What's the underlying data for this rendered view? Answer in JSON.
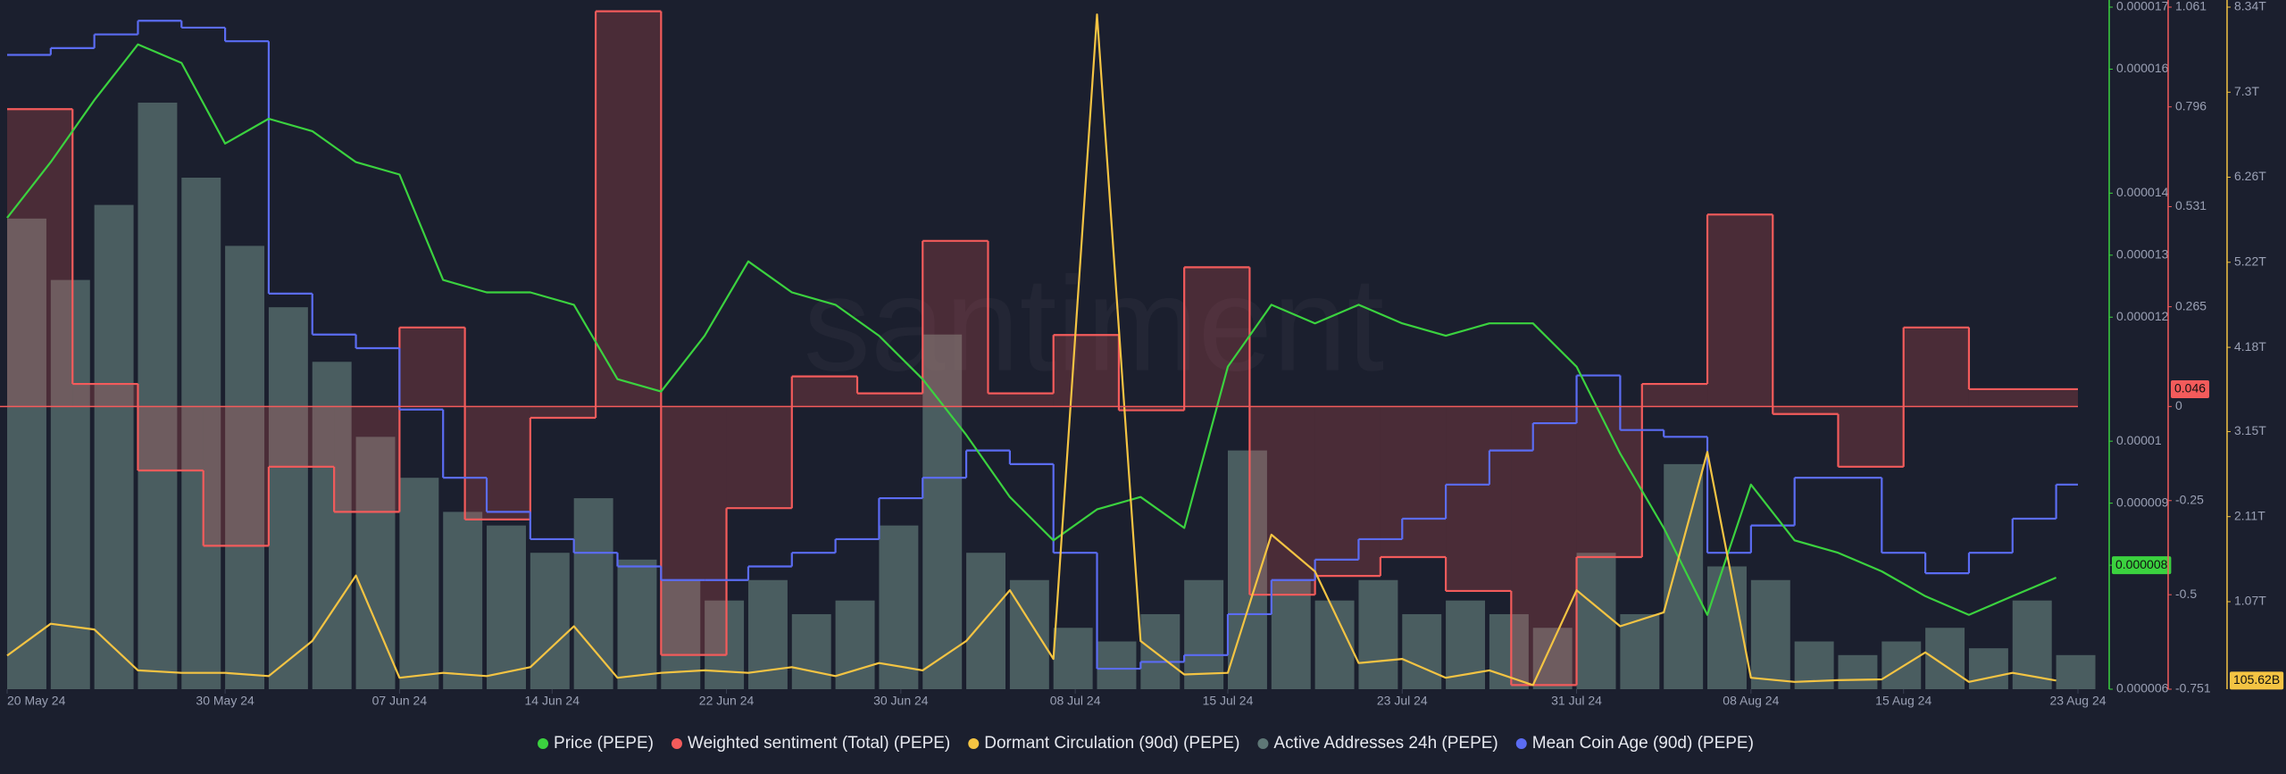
{
  "chart_data": {
    "type": "line",
    "watermark": "santiment",
    "xlim": [
      "2024-05-20",
      "2024-08-23"
    ],
    "xticks": [
      {
        "value": "2024-05-20",
        "label": "20 May 24"
      },
      {
        "value": "2024-05-30",
        "label": "30 May 24"
      },
      {
        "value": "2024-06-07",
        "label": "07 Jun 24"
      },
      {
        "value": "2024-06-14",
        "label": "14 Jun 24"
      },
      {
        "value": "2024-06-22",
        "label": "22 Jun 24"
      },
      {
        "value": "2024-06-30",
        "label": "30 Jun 24"
      },
      {
        "value": "2024-07-08",
        "label": "08 Jul 24"
      },
      {
        "value": "2024-07-15",
        "label": "15 Jul 24"
      },
      {
        "value": "2024-07-23",
        "label": "23 Jul 24"
      },
      {
        "value": "2024-07-31",
        "label": "31 Jul 24"
      },
      {
        "value": "2024-08-08",
        "label": "08 Aug 24"
      },
      {
        "value": "2024-08-15",
        "label": "15 Aug 24"
      },
      {
        "value": "2024-08-23",
        "label": "23 Aug 24"
      }
    ],
    "x": [
      "2024-05-20",
      "2024-05-22",
      "2024-05-24",
      "2024-05-26",
      "2024-05-28",
      "2024-05-30",
      "2024-06-01",
      "2024-06-03",
      "2024-06-05",
      "2024-06-07",
      "2024-06-09",
      "2024-06-11",
      "2024-06-13",
      "2024-06-15",
      "2024-06-17",
      "2024-06-19",
      "2024-06-21",
      "2024-06-23",
      "2024-06-25",
      "2024-06-27",
      "2024-06-29",
      "2024-07-01",
      "2024-07-03",
      "2024-07-05",
      "2024-07-07",
      "2024-07-09",
      "2024-07-11",
      "2024-07-13",
      "2024-07-15",
      "2024-07-17",
      "2024-07-19",
      "2024-07-21",
      "2024-07-23",
      "2024-07-25",
      "2024-07-27",
      "2024-07-29",
      "2024-07-31",
      "2024-08-02",
      "2024-08-04",
      "2024-08-06",
      "2024-08-08",
      "2024-08-10",
      "2024-08-12",
      "2024-08-14",
      "2024-08-16",
      "2024-08-18",
      "2024-08-20",
      "2024-08-22"
    ],
    "ylim": [
      6e-06,
      1.7e-05
    ],
    "yticks": [
      1.7e-05,
      1.6e-05,
      1.4e-05,
      1.3e-05,
      1.2e-05,
      1e-05,
      9e-06,
      8e-06,
      6e-06
    ],
    "y2lim": [
      -0.751,
      1.061
    ],
    "y2ticks": [
      1.061,
      0.796,
      0.531,
      0.265,
      0,
      -0.25,
      -0.5,
      -0.751
    ],
    "y3lim": [
      0,
      8340000000000
    ],
    "y3ticks": [
      {
        "value": 8340000000000,
        "label": "8.34T"
      },
      {
        "value": 7300000000000,
        "label": "7.3T"
      },
      {
        "value": 6260000000000,
        "label": "6.26T"
      },
      {
        "value": 5220000000000,
        "label": "5.22T"
      },
      {
        "value": 4180000000000,
        "label": "4.18T"
      },
      {
        "value": 3150000000000,
        "label": "3.15T"
      },
      {
        "value": 2110000000000,
        "label": "2.11T"
      },
      {
        "value": 1070000000000,
        "label": "1.07T"
      }
    ],
    "series": [
      {
        "name": "Price (PEPE)",
        "type": "line",
        "axis": "y",
        "color": "#3bd23f",
        "current": {
          "value": 8e-06,
          "label": "0.000008"
        },
        "values": [
          1.36e-05,
          1.45e-05,
          1.55e-05,
          1.64e-05,
          1.61e-05,
          1.48e-05,
          1.52e-05,
          1.5e-05,
          1.45e-05,
          1.43e-05,
          1.26e-05,
          1.24e-05,
          1.24e-05,
          1.22e-05,
          1.1e-05,
          1.08e-05,
          1.17e-05,
          1.29e-05,
          1.24e-05,
          1.22e-05,
          1.17e-05,
          1.1e-05,
          1.01e-05,
          9.1e-06,
          8.4e-06,
          8.9e-06,
          9.1e-06,
          8.6e-06,
          1.12e-05,
          1.22e-05,
          1.19e-05,
          1.22e-05,
          1.19e-05,
          1.17e-05,
          1.19e-05,
          1.19e-05,
          1.12e-05,
          9.8e-06,
          8.6e-06,
          7.2e-06,
          9.3e-06,
          8.4e-06,
          8.2e-06,
          7.9e-06,
          7.5e-06,
          7.2e-06,
          7.5e-06,
          7.8e-06
        ]
      },
      {
        "name": "Weighted sentiment (Total) (PEPE)",
        "type": "step-area",
        "axis": "y2",
        "color": "#f35b5b",
        "current": {
          "value": 0.046,
          "label": "0.046"
        },
        "x": [
          "2024-05-20",
          "2024-05-23",
          "2024-05-26",
          "2024-05-29",
          "2024-06-01",
          "2024-06-04",
          "2024-06-07",
          "2024-06-10",
          "2024-06-13",
          "2024-06-16",
          "2024-06-19",
          "2024-06-22",
          "2024-06-25",
          "2024-06-28",
          "2024-07-01",
          "2024-07-04",
          "2024-07-07",
          "2024-07-10",
          "2024-07-13",
          "2024-07-16",
          "2024-07-19",
          "2024-07-22",
          "2024-07-25",
          "2024-07-28",
          "2024-07-31",
          "2024-08-03",
          "2024-08-06",
          "2024-08-09",
          "2024-08-12",
          "2024-08-15",
          "2024-08-18"
        ],
        "values": [
          0.79,
          0.06,
          -0.17,
          -0.37,
          -0.16,
          -0.28,
          0.21,
          -0.3,
          -0.03,
          1.05,
          -0.66,
          -0.27,
          0.08,
          0.035,
          0.44,
          0.035,
          0.19,
          -0.01,
          0.37,
          -0.5,
          -0.45,
          -0.4,
          -0.49,
          -0.74,
          -0.4,
          0.06,
          0.51,
          -0.02,
          -0.16,
          0.21,
          0.046
        ]
      },
      {
        "name": "Dormant Circulation (90d) (PEPE)",
        "type": "line",
        "axis": "y3",
        "color": "#f4c443",
        "current": {
          "value": 105620000000,
          "label": "105.62B"
        },
        "values": [
          410000000000,
          800000000000,
          730000000000,
          230000000000,
          200000000000,
          200000000000,
          160000000000,
          590000000000,
          1390000000000,
          140000000000,
          200000000000,
          160000000000,
          270000000000,
          770000000000,
          140000000000,
          200000000000,
          230000000000,
          200000000000,
          270000000000,
          160000000000,
          320000000000,
          230000000000,
          590000000000,
          1210000000000,
          370000000000,
          8250000000000,
          590000000000,
          180000000000,
          200000000000,
          1890000000000,
          1440000000000,
          320000000000,
          370000000000,
          140000000000,
          230000000000,
          50000000000,
          1210000000000,
          770000000000,
          940000000000,
          2900000000000,
          140000000000,
          90000000000,
          110000000000,
          120000000000,
          450000000000,
          90000000000,
          200000000000,
          105620000000
        ]
      },
      {
        "name": "Active Addresses 24h (PEPE)",
        "type": "bar",
        "color": "#5e7776",
        "ylim": [
          0,
          100
        ],
        "values": [
          69,
          60,
          71,
          86,
          75,
          65,
          56,
          48,
          37,
          31,
          26,
          24,
          20,
          28,
          19,
          16,
          13,
          16,
          11,
          13,
          24,
          52,
          20,
          16,
          9,
          7,
          11,
          16,
          35,
          16,
          13,
          16,
          11,
          13,
          11,
          9,
          20,
          11,
          33,
          18,
          16,
          7,
          5,
          7,
          9,
          6,
          13,
          5
        ]
      },
      {
        "name": "Mean Coin Age (90d) (PEPE)",
        "type": "step",
        "color": "#5b6cf3",
        "ylim": [
          0,
          100
        ],
        "values": [
          93,
          94,
          96,
          98,
          97,
          95,
          58,
          52,
          50,
          41,
          31,
          26,
          22,
          20,
          18,
          16,
          16,
          18,
          20,
          22,
          28,
          31,
          35,
          33,
          20,
          3,
          4,
          5,
          11,
          16,
          19,
          22,
          25,
          30,
          35,
          39,
          46,
          38,
          37,
          20,
          24,
          31,
          31,
          20,
          17,
          20,
          25,
          30
        ]
      }
    ]
  }
}
